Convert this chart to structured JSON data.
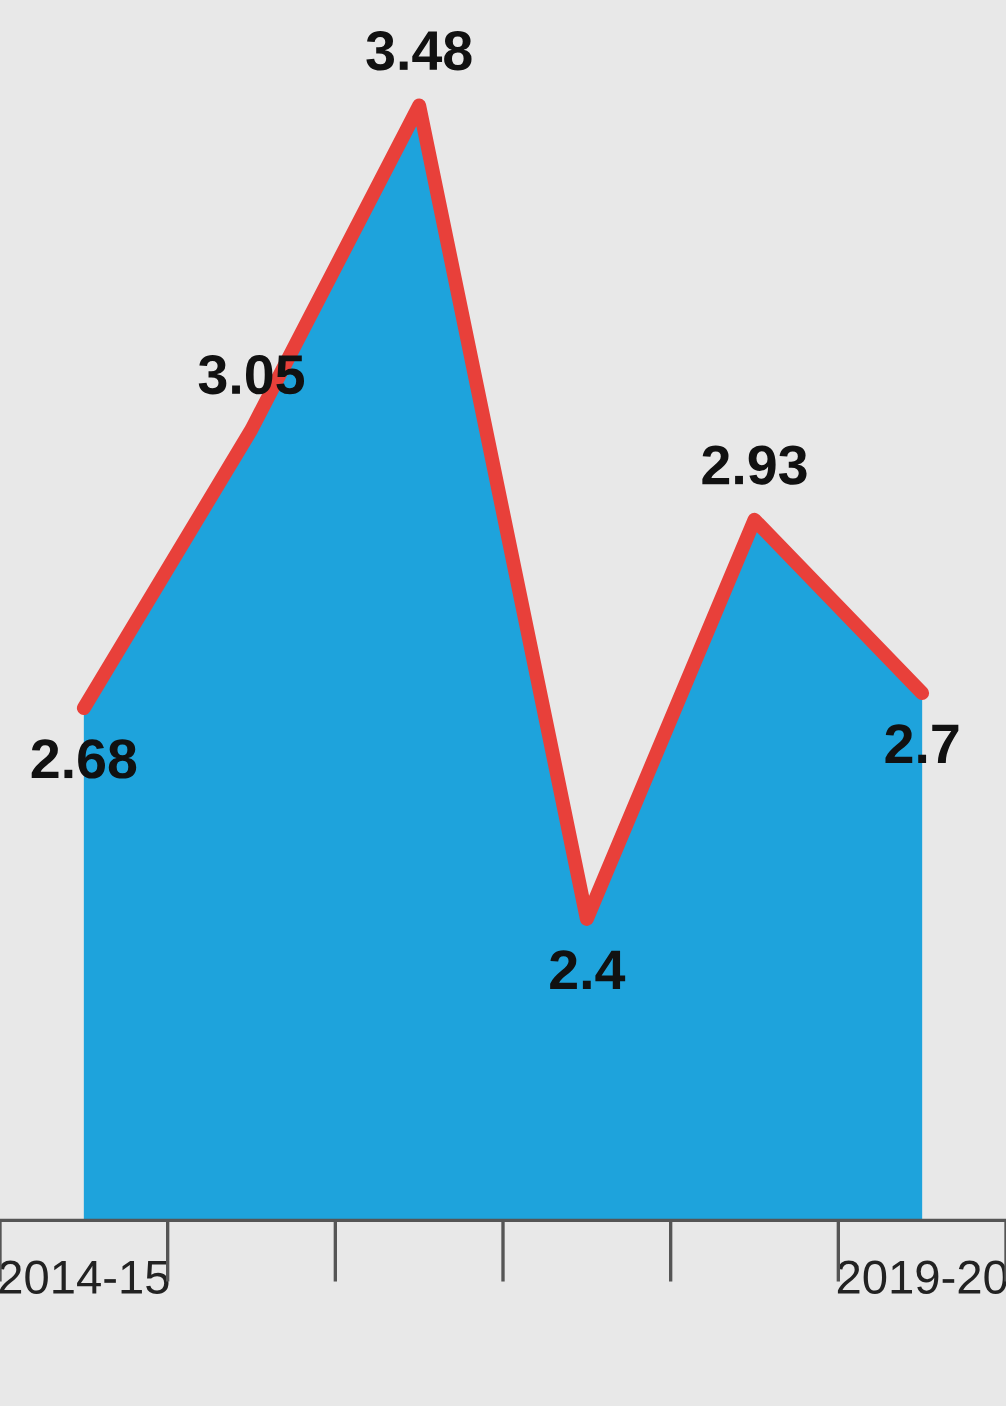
{
  "chart_data": {
    "type": "area",
    "categories": [
      "2014-15",
      null,
      null,
      null,
      null,
      "2019-20"
    ],
    "series": [
      {
        "color": "#1ea3dc",
        "values": [
          2.68,
          3.05,
          3.48,
          2.4,
          2.93,
          2.7
        ]
      },
      {
        "type": "line",
        "color": "#e8403a",
        "values": [
          2.68,
          3.05,
          3.48,
          2.4,
          2.93,
          2.7
        ],
        "value_labels": [
          "2.68",
          "3.05",
          "3.48",
          "2.4",
          "2.93",
          "2.7"
        ]
      }
    ],
    "ylim": [
      2.0,
      3.62
    ],
    "tick_labels": "x",
    "grid": false
  }
}
